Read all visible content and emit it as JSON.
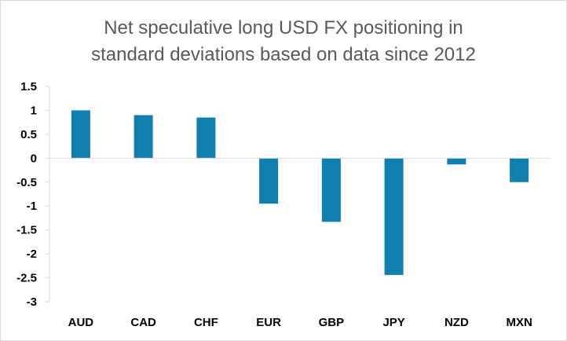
{
  "chart_data": {
    "type": "bar",
    "title_lines": [
      "Net speculative long USD FX positioning in",
      "standard deviations based on data since 2012"
    ],
    "categories": [
      "AUD",
      "CAD",
      "CHF",
      "EUR",
      "GBP",
      "JPY",
      "NZD",
      "MXN"
    ],
    "values": [
      1.0,
      0.9,
      0.85,
      -0.95,
      -1.33,
      -2.44,
      -0.13,
      -0.5
    ],
    "ylim": [
      -3,
      1.5
    ],
    "yticks": [
      1.5,
      1,
      0.5,
      0,
      -0.5,
      -1,
      -1.5,
      -2,
      -2.5,
      -3
    ],
    "ytick_labels": [
      "1.5",
      "1",
      "0.5",
      "0",
      "-0.5",
      "-1",
      "-1.5",
      "-2",
      "-2.5",
      "-3"
    ],
    "bar_color": "#0f7fb0",
    "axis_color": "#d9d9d9",
    "grid": false,
    "legend": "none"
  }
}
